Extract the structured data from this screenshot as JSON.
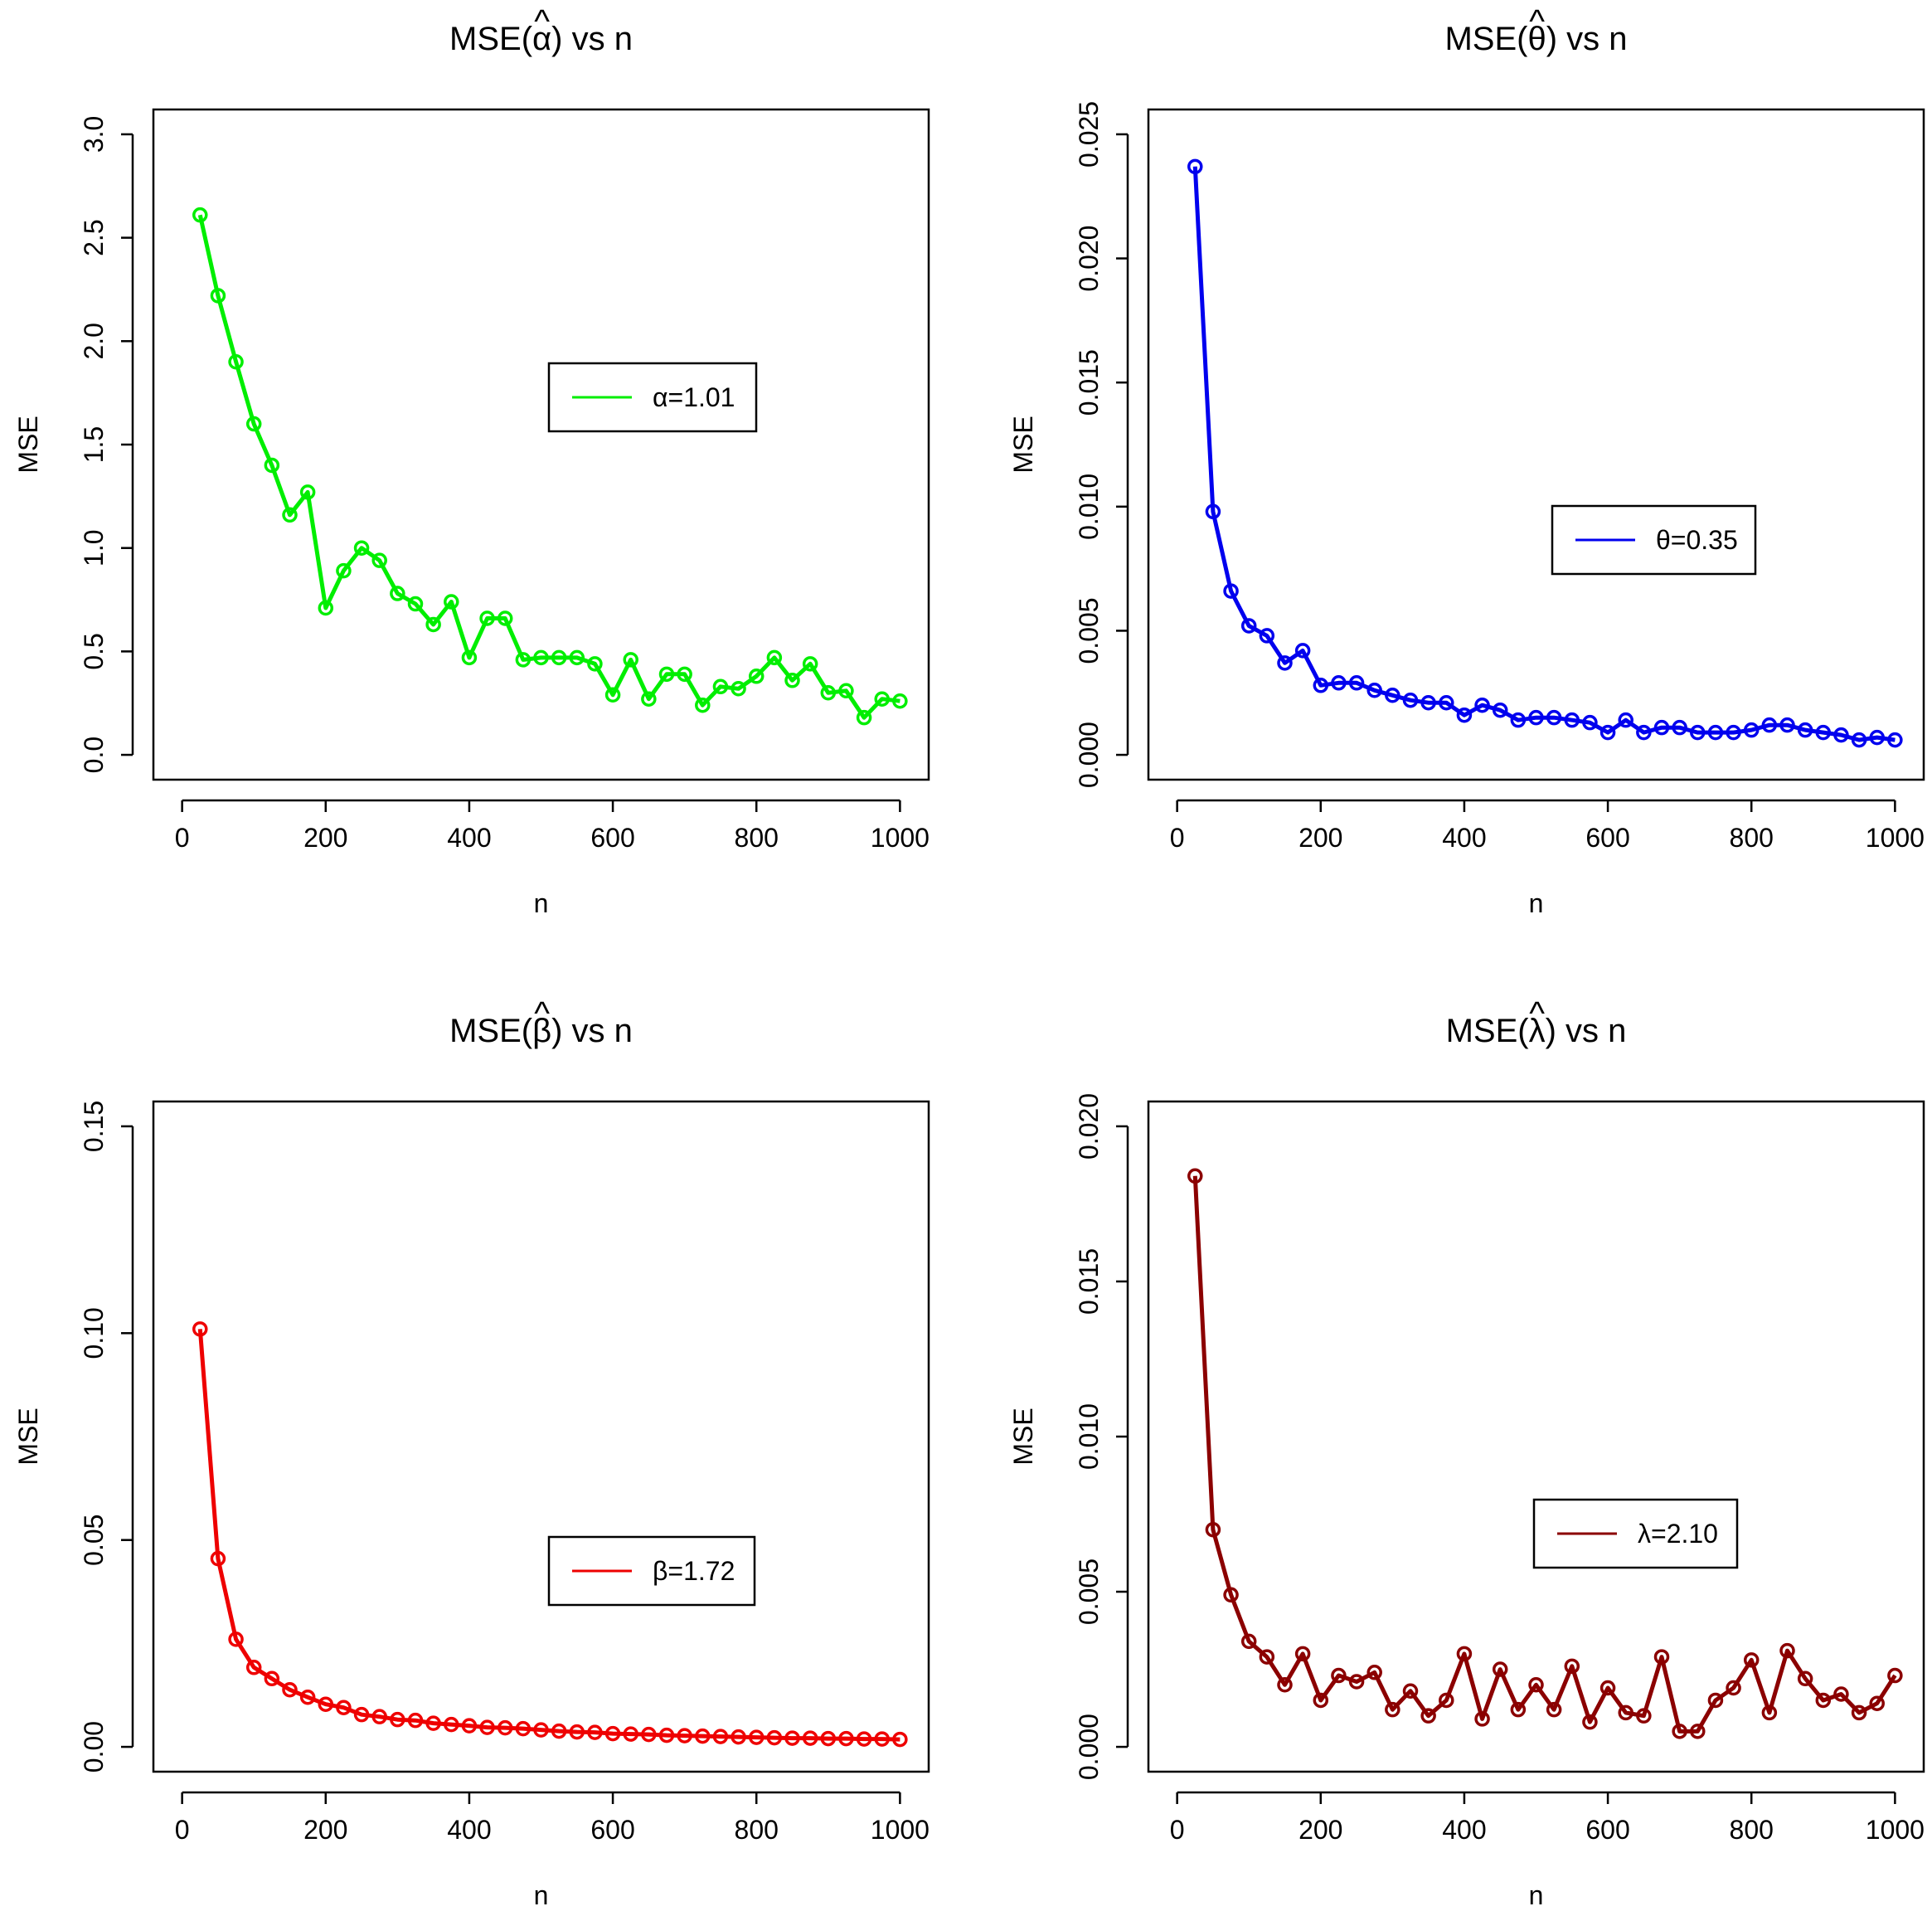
{
  "chart_data": [
    {
      "type": "line",
      "title_prefix": "MSE(",
      "title_symbol": "α",
      "title_hat": "^",
      "title_suffix": ") vs n",
      "xlabel": "n",
      "ylabel": "MSE",
      "xlim": [
        0,
        1000
      ],
      "ylim": [
        0,
        3.0
      ],
      "x_ticks": [
        0,
        200,
        400,
        600,
        800,
        1000
      ],
      "x_tick_labels": [
        "0",
        "200",
        "400",
        "600",
        "800",
        "1000"
      ],
      "y_ticks": [
        0,
        0.5,
        1.0,
        1.5,
        2.0,
        2.5,
        3.0
      ],
      "y_tick_labels": [
        "0.0",
        "0.5",
        "1.0",
        "1.5",
        "2.0",
        "2.5",
        "3.0"
      ],
      "color": "#00ee00",
      "legend_label": "α=1.01",
      "legend_position": "center-right",
      "series": [
        {
          "name": "α=1.01",
          "x": [
            25,
            50,
            75,
            100,
            125,
            150,
            175,
            200,
            225,
            250,
            275,
            300,
            325,
            350,
            375,
            400,
            425,
            450,
            475,
            500,
            525,
            550,
            575,
            600,
            625,
            650,
            675,
            700,
            725,
            750,
            775,
            800,
            825,
            850,
            875,
            900,
            925,
            950,
            975,
            1000
          ],
          "values": [
            2.61,
            2.22,
            1.9,
            1.6,
            1.4,
            1.16,
            1.27,
            0.71,
            0.89,
            1.0,
            0.94,
            0.78,
            0.73,
            0.63,
            0.74,
            0.47,
            0.66,
            0.66,
            0.46,
            0.47,
            0.47,
            0.47,
            0.44,
            0.29,
            0.46,
            0.27,
            0.39,
            0.39,
            0.24,
            0.33,
            0.32,
            0.38,
            0.47,
            0.36,
            0.44,
            0.3,
            0.31,
            0.18,
            0.27,
            0.26
          ]
        }
      ]
    },
    {
      "type": "line",
      "title_prefix": "MSE(",
      "title_symbol": "θ",
      "title_hat": "^",
      "title_suffix": ") vs n",
      "xlabel": "n",
      "ylabel": "MSE",
      "xlim": [
        0,
        1000
      ],
      "ylim": [
        0,
        0.025
      ],
      "x_ticks": [
        0,
        200,
        400,
        600,
        800,
        1000
      ],
      "x_tick_labels": [
        "0",
        "200",
        "400",
        "600",
        "800",
        "1000"
      ],
      "y_ticks": [
        0,
        0.005,
        0.01,
        0.015,
        0.02,
        0.025
      ],
      "y_tick_labels": [
        "0.000",
        "0.005",
        "0.010",
        "0.015",
        "0.020",
        "0.025"
      ],
      "color": "#0000ee",
      "legend_label": "θ=0.35",
      "legend_position": "center-right",
      "series": [
        {
          "name": "θ=0.35",
          "x": [
            25,
            50,
            75,
            100,
            125,
            150,
            175,
            200,
            225,
            250,
            275,
            300,
            325,
            350,
            375,
            400,
            425,
            450,
            475,
            500,
            525,
            550,
            575,
            600,
            625,
            650,
            675,
            700,
            725,
            750,
            775,
            800,
            825,
            850,
            875,
            900,
            925,
            950,
            975,
            1000
          ],
          "values": [
            0.0237,
            0.0098,
            0.0066,
            0.0052,
            0.0048,
            0.0037,
            0.0042,
            0.0028,
            0.0029,
            0.0029,
            0.0026,
            0.0024,
            0.0022,
            0.0021,
            0.0021,
            0.0016,
            0.002,
            0.0018,
            0.0014,
            0.0015,
            0.0015,
            0.0014,
            0.0013,
            0.0009,
            0.0014,
            0.0009,
            0.0011,
            0.0011,
            0.0009,
            0.0009,
            0.0009,
            0.001,
            0.0012,
            0.0012,
            0.001,
            0.0009,
            0.0008,
            0.0006,
            0.0007,
            0.0006
          ]
        }
      ]
    },
    {
      "type": "line",
      "title_prefix": "MSE(",
      "title_symbol": "β",
      "title_hat": "^",
      "title_suffix": ") vs n",
      "xlabel": "n",
      "ylabel": "MSE",
      "xlim": [
        0,
        1000
      ],
      "ylim": [
        0,
        0.15
      ],
      "x_ticks": [
        0,
        200,
        400,
        600,
        800,
        1000
      ],
      "x_tick_labels": [
        "0",
        "200",
        "400",
        "600",
        "800",
        "1000"
      ],
      "y_ticks": [
        0,
        0.05,
        0.1,
        0.15
      ],
      "y_tick_labels": [
        "0.00",
        "0.05",
        "0.10",
        "0.15"
      ],
      "color": "#ee0000",
      "legend_label": "β=1.72",
      "legend_position": "bottom-right",
      "series": [
        {
          "name": "β=1.72",
          "x": [
            25,
            50,
            75,
            100,
            125,
            150,
            175,
            200,
            225,
            250,
            275,
            300,
            325,
            350,
            375,
            400,
            425,
            450,
            475,
            500,
            525,
            550,
            575,
            600,
            625,
            650,
            675,
            700,
            725,
            750,
            775,
            800,
            825,
            850,
            875,
            900,
            925,
            950,
            975,
            1000
          ],
          "values": [
            0.101,
            0.0455,
            0.026,
            0.0192,
            0.0165,
            0.0138,
            0.012,
            0.0103,
            0.0095,
            0.0078,
            0.0073,
            0.0066,
            0.0064,
            0.0057,
            0.0054,
            0.0051,
            0.0047,
            0.0046,
            0.0044,
            0.0041,
            0.0038,
            0.0036,
            0.0035,
            0.0032,
            0.0031,
            0.003,
            0.0028,
            0.0027,
            0.0026,
            0.0025,
            0.0024,
            0.0023,
            0.0022,
            0.0021,
            0.0021,
            0.002,
            0.002,
            0.0019,
            0.0019,
            0.0018
          ]
        }
      ]
    },
    {
      "type": "line",
      "title_prefix": "MSE(",
      "title_symbol": "λ",
      "title_hat": "^",
      "title_suffix": ") vs n",
      "xlabel": "n",
      "ylabel": "MSE",
      "xlim": [
        0,
        1000
      ],
      "ylim": [
        0,
        0.02
      ],
      "x_ticks": [
        0,
        200,
        400,
        600,
        800,
        1000
      ],
      "x_tick_labels": [
        "0",
        "200",
        "400",
        "600",
        "800",
        "1000"
      ],
      "y_ticks": [
        0,
        0.005,
        0.01,
        0.015,
        0.02
      ],
      "y_tick_labels": [
        "0.000",
        "0.005",
        "0.010",
        "0.015",
        "0.020"
      ],
      "color": "#8b0000",
      "legend_label": "λ=2.10",
      "legend_position": "center-right",
      "series": [
        {
          "name": "λ=2.10",
          "x": [
            25,
            50,
            75,
            100,
            125,
            150,
            175,
            200,
            225,
            250,
            275,
            300,
            325,
            350,
            375,
            400,
            425,
            450,
            475,
            500,
            525,
            550,
            575,
            600,
            625,
            650,
            675,
            700,
            725,
            750,
            775,
            800,
            825,
            850,
            875,
            900,
            925,
            950,
            975,
            1000
          ],
          "values": [
            0.0184,
            0.007,
            0.0049,
            0.0034,
            0.0029,
            0.002,
            0.003,
            0.0015,
            0.0023,
            0.0021,
            0.0024,
            0.0012,
            0.0018,
            0.001,
            0.0015,
            0.003,
            0.0009,
            0.0025,
            0.0012,
            0.002,
            0.0012,
            0.0026,
            0.0008,
            0.0019,
            0.0011,
            0.001,
            0.0029,
            0.0005,
            0.0005,
            0.0015,
            0.0019,
            0.0028,
            0.0011,
            0.0031,
            0.0022,
            0.0015,
            0.0017,
            0.0011,
            0.0014,
            0.0023
          ]
        }
      ]
    }
  ]
}
